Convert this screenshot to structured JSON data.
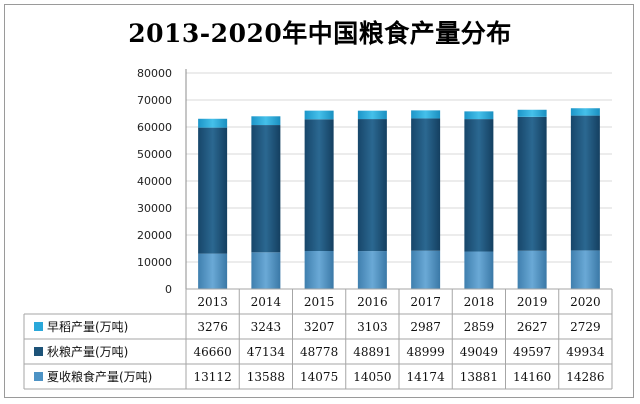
{
  "chart_data": {
    "type": "bar",
    "stacked": true,
    "title": "2013-2020年中国粮食产量分布",
    "categories": [
      "2013",
      "2014",
      "2015",
      "2016",
      "2017",
      "2018",
      "2019",
      "2020"
    ],
    "ylim": [
      0,
      80000
    ],
    "yticks": [
      0,
      10000,
      20000,
      30000,
      40000,
      50000,
      60000,
      70000,
      80000
    ],
    "grid": true,
    "data_table": true,
    "series": [
      {
        "name": "夏收粮食产量(万吨)",
        "color": "#4d93c5",
        "values": [
          13112,
          13588,
          14075,
          14050,
          14174,
          13881,
          14160,
          14286
        ]
      },
      {
        "name": "秋粮产量(万吨)",
        "color": "#1d5378",
        "values": [
          46660,
          47134,
          48778,
          48891,
          48999,
          49049,
          49597,
          49934
        ]
      },
      {
        "name": "早稻产量(万吨)",
        "color": "#2aa8da",
        "values": [
          3276,
          3243,
          3207,
          3103,
          2987,
          2859,
          2627,
          2729
        ]
      }
    ]
  }
}
